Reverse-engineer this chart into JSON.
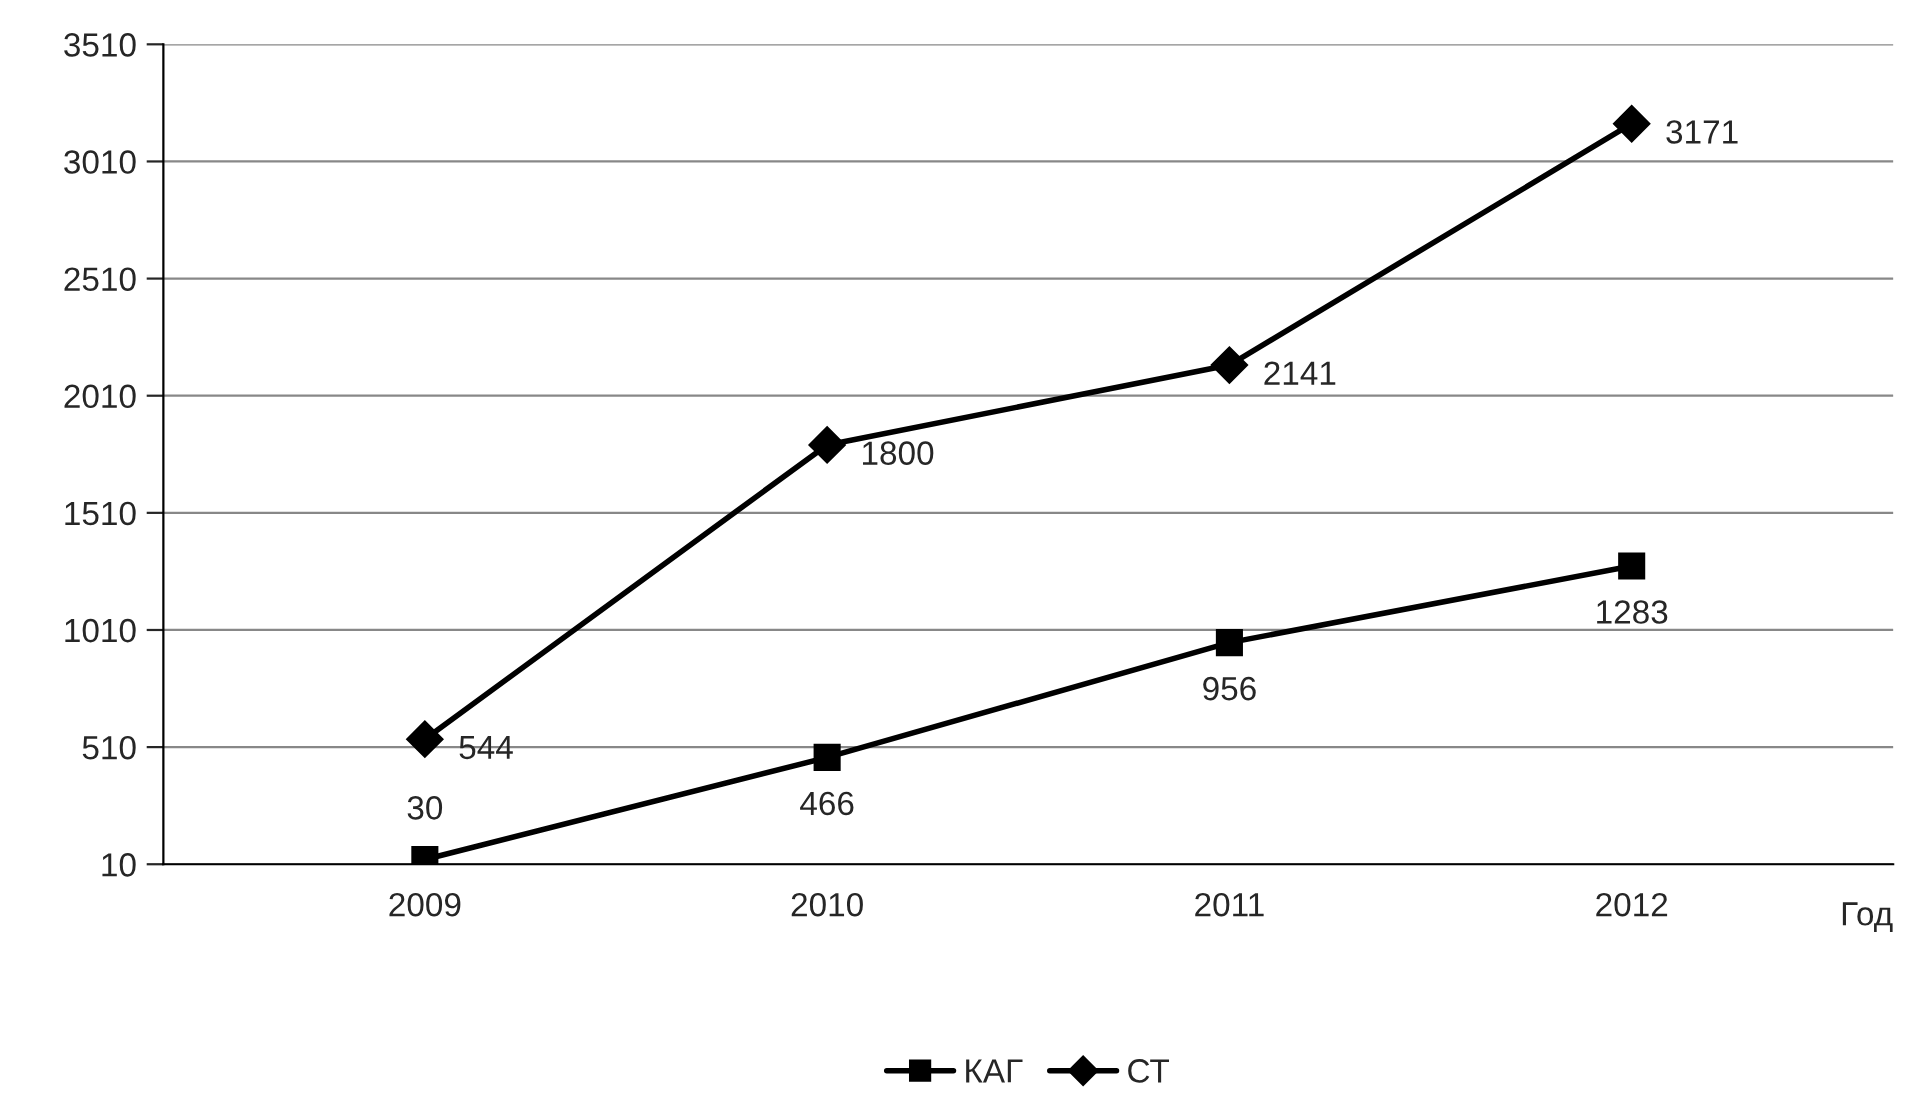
{
  "chart_data": {
    "type": "line",
    "categories": [
      "2009",
      "2010",
      "2011",
      "2012"
    ],
    "xlabel": "Год",
    "series": [
      {
        "name": "КАГ",
        "color": "#000000",
        "values": [
          30,
          466,
          956,
          1283
        ],
        "marker": "square"
      },
      {
        "name": "СТ",
        "color": "#000000",
        "values": [
          544,
          1800,
          2141,
          3171
        ],
        "marker": "diamond"
      }
    ],
    "ylim": [
      10,
      3510
    ],
    "yticks": [
      10,
      510,
      1010,
      1510,
      2010,
      2510,
      3010,
      3510
    ],
    "grid": "y",
    "legend": "bottom",
    "data_labels": true,
    "line_style": "solid"
  }
}
